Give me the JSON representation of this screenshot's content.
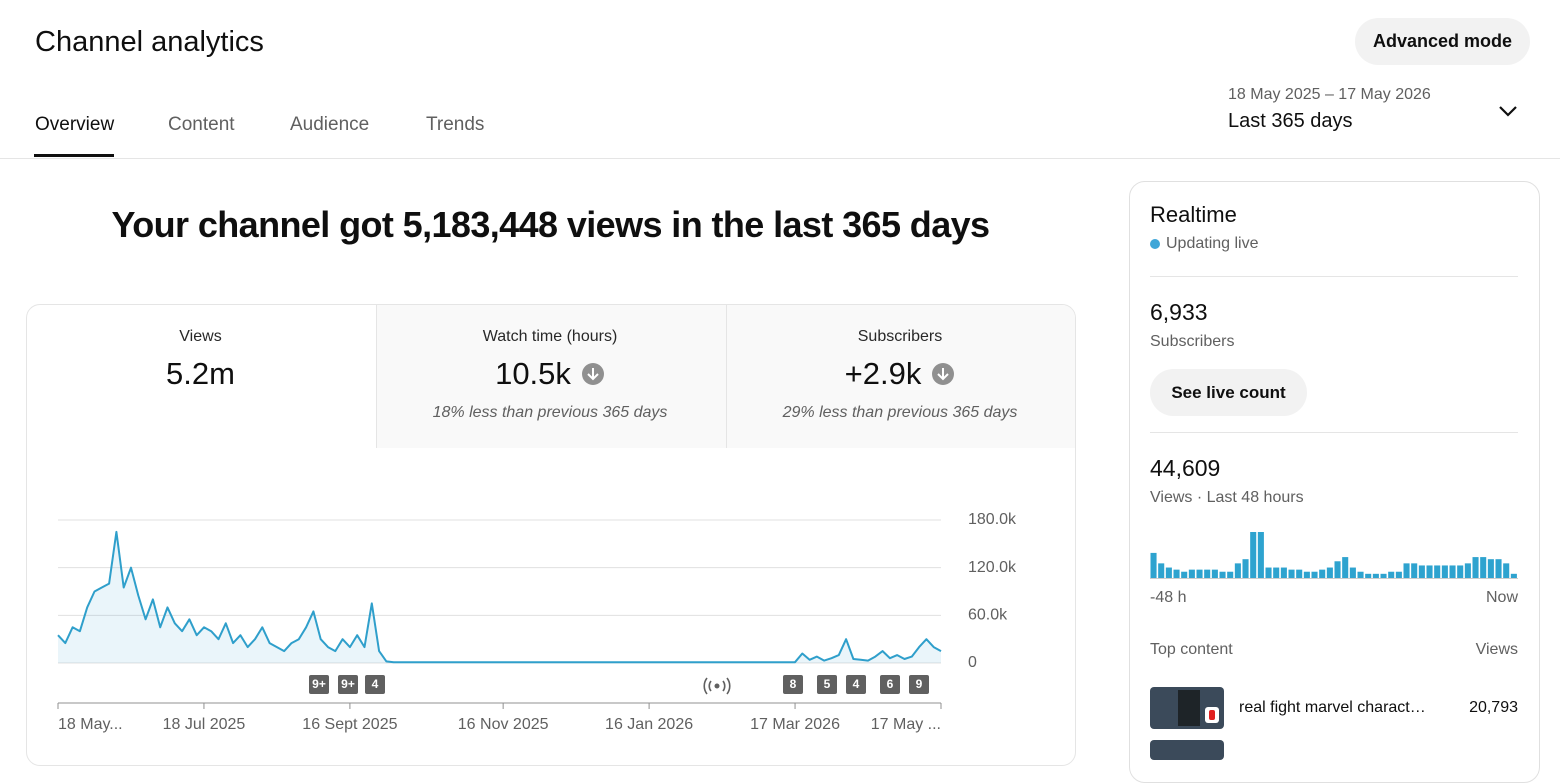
{
  "header": {
    "title": "Channel analytics",
    "advanced_mode": "Advanced mode",
    "tabs": [
      "Overview",
      "Content",
      "Audience",
      "Trends"
    ],
    "date_range": "18 May 2025 – 17 May 2026",
    "period": "Last 365 days"
  },
  "headline": "Your channel got 5,183,448 views in the last 365 days",
  "metrics": [
    {
      "label": "Views",
      "value": "5.2m"
    },
    {
      "label": "Watch time (hours)",
      "value": "10.5k",
      "note": "18% less than previous 365 days"
    },
    {
      "label": "Subscribers",
      "value": "+2.9k",
      "note": "29% less than previous 365 days"
    }
  ],
  "chart_data": [
    {
      "type": "line",
      "color": "#2f9fcb",
      "grid": true,
      "categories": [
        "18 May...",
        null,
        null,
        null,
        null,
        null,
        null,
        null,
        null,
        null,
        null,
        null,
        null,
        null,
        null,
        null,
        null,
        null,
        null,
        null,
        "18 Jul 2025",
        null,
        null,
        null,
        null,
        null,
        null,
        null,
        null,
        null,
        null,
        null,
        null,
        null,
        null,
        null,
        null,
        null,
        null,
        null,
        "16 Sept 2025",
        null,
        null,
        null,
        null,
        null,
        null,
        null,
        null,
        null,
        null,
        null,
        null,
        null,
        null,
        null,
        null,
        null,
        null,
        null,
        null,
        "16 Nov 2025",
        null,
        null,
        null,
        null,
        null,
        null,
        null,
        null,
        null,
        null,
        null,
        null,
        null,
        null,
        null,
        null,
        null,
        null,
        null,
        "16 Jan 2026",
        null,
        null,
        null,
        null,
        null,
        null,
        null,
        null,
        null,
        null,
        null,
        null,
        null,
        null,
        null,
        null,
        null,
        null,
        null,
        "17 Mar 2026",
        null,
        null,
        null,
        null,
        null,
        null,
        null,
        null,
        null,
        null,
        null,
        null,
        null,
        null,
        null,
        null,
        null,
        null,
        null,
        "17 May ..."
      ],
      "values": [
        35000,
        25000,
        45000,
        40000,
        70000,
        90000,
        95000,
        100000,
        165000,
        95000,
        120000,
        85000,
        55000,
        80000,
        45000,
        70000,
        50000,
        40000,
        55000,
        35000,
        45000,
        40000,
        30000,
        50000,
        25000,
        35000,
        20000,
        30000,
        45000,
        25000,
        20000,
        15000,
        25000,
        30000,
        45000,
        65000,
        30000,
        20000,
        15000,
        30000,
        20000,
        35000,
        20000,
        75000,
        15000,
        2000,
        1000,
        1000,
        1000,
        1000,
        1000,
        1000,
        1000,
        1000,
        1000,
        1000,
        1000,
        1000,
        1000,
        1000,
        1000,
        1000,
        1000,
        1000,
        1000,
        1000,
        1000,
        1000,
        1000,
        1000,
        1000,
        1000,
        1000,
        1000,
        1000,
        1000,
        1000,
        1000,
        1000,
        1000,
        1000,
        1000,
        1000,
        1000,
        1000,
        1000,
        1000,
        1000,
        1000,
        1000,
        1000,
        1000,
        1000,
        1000,
        1000,
        1000,
        1000,
        1000,
        1000,
        1000,
        1000,
        1000,
        12000,
        4000,
        8000,
        3000,
        6000,
        10000,
        30000,
        5000,
        4000,
        3000,
        8000,
        15000,
        6000,
        10000,
        5000,
        8000,
        20000,
        30000,
        20000,
        15000
      ],
      "ylim": [
        0,
        180000
      ],
      "yticks": [
        0,
        {
          "value": 60000,
          "label": "60.0k"
        },
        {
          "value": 120000,
          "label": "120.0k"
        },
        {
          "value": 180000,
          "label": "180.0k"
        }
      ],
      "annotations": [
        "9+",
        "9+",
        "4",
        "8",
        "5",
        "4",
        "6",
        "9"
      ]
    },
    {
      "type": "bar",
      "color": "#2ea3cf",
      "categories": [
        "-48 h",
        null,
        null,
        null,
        null,
        null,
        null,
        null,
        null,
        null,
        null,
        null,
        null,
        null,
        null,
        null,
        null,
        null,
        null,
        null,
        null,
        null,
        null,
        null,
        null,
        null,
        null,
        null,
        null,
        null,
        null,
        null,
        null,
        null,
        null,
        null,
        null,
        null,
        null,
        null,
        null,
        null,
        null,
        null,
        null,
        null,
        null,
        "Now"
      ],
      "values": [
        1800,
        1050,
        750,
        600,
        450,
        600,
        600,
        600,
        600,
        450,
        450,
        1050,
        1350,
        3300,
        3300,
        750,
        750,
        750,
        600,
        600,
        450,
        450,
        600,
        750,
        1200,
        1500,
        750,
        450,
        300,
        300,
        300,
        450,
        450,
        1050,
        1050,
        900,
        900,
        900,
        900,
        900,
        900,
        1050,
        1500,
        1500,
        1350,
        1350,
        1050,
        300
      ]
    }
  ],
  "realtime": {
    "title": "Realtime",
    "status": "Updating live",
    "subscribers": "6,933",
    "subscribers_label": "Subscribers",
    "live_count_button": "See live count",
    "views": "44,609",
    "views_label": "Views · Last 48 hours",
    "top_content": {
      "title": "Top content",
      "views_header": "Views",
      "items": [
        {
          "title": "real fight marvel charact…",
          "views": "20,793"
        }
      ]
    }
  }
}
